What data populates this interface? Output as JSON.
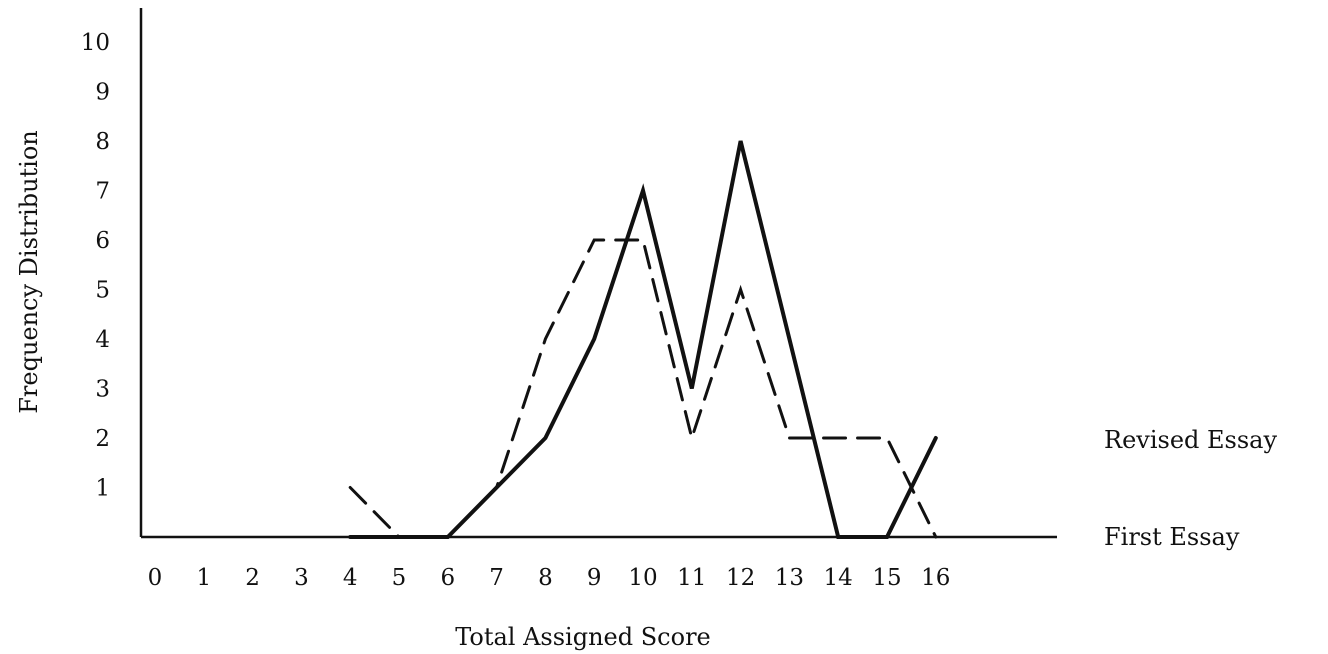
{
  "chart_data": {
    "type": "line",
    "title": "",
    "xlabel": "Total Assigned Score",
    "ylabel": "Frequency Distribution",
    "x": [
      4,
      5,
      6,
      7,
      8,
      9,
      10,
      11,
      12,
      13,
      14,
      15,
      16
    ],
    "x_ticks": [
      0,
      1,
      2,
      3,
      4,
      5,
      6,
      7,
      8,
      9,
      10,
      11,
      12,
      13,
      14,
      15,
      16
    ],
    "y_ticks": [
      1,
      2,
      3,
      4,
      5,
      6,
      7,
      8,
      9,
      10
    ],
    "xlim": [
      0,
      16
    ],
    "ylim": [
      0,
      10
    ],
    "grid": false,
    "legend": "right",
    "series": [
      {
        "name": "Revised Essay",
        "line_style": "dashed",
        "color": "#111111",
        "values": [
          1,
          0,
          0,
          1,
          4,
          6,
          6,
          2,
          5,
          2,
          2,
          2,
          0
        ]
      },
      {
        "name": "First Essay",
        "line_style": "solid",
        "color": "#111111",
        "values": [
          0,
          0,
          0,
          1,
          2,
          4,
          7,
          3,
          8,
          4,
          0,
          0,
          2
        ]
      }
    ]
  }
}
